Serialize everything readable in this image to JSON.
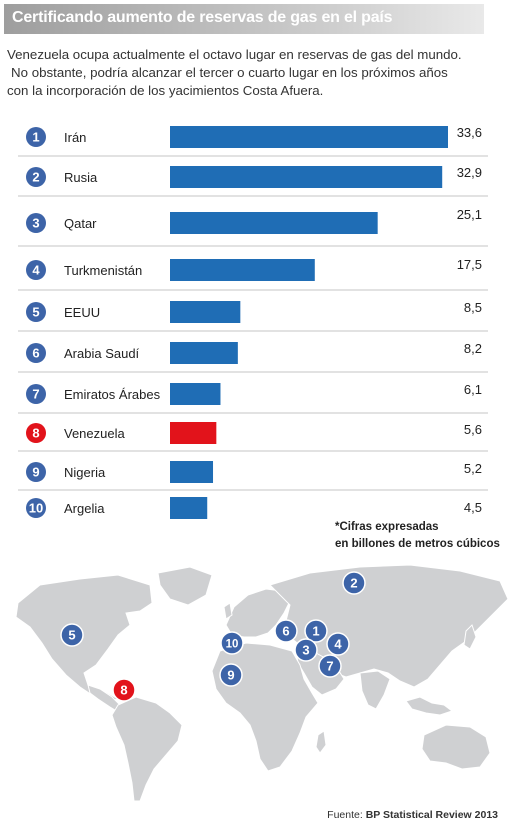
{
  "header": {
    "title": "Certificando aumento de reservas de gas en el país"
  },
  "intro": {
    "line1": "Venezuela ocupa actualmente el octavo lugar en reservas de gas del mundo.",
    "line2": "No obstante, podría alcanzar el tercer o cuarto lugar en los próximos años",
    "line3": "con la incorporación de los yacimientos Costa Afuera."
  },
  "note": {
    "line1": "*Cifras expresadas",
    "line2": "en billones de metros cúbicos"
  },
  "source": {
    "prefix": "Fuente: ",
    "name": "BP Statistical Review 2013"
  },
  "colors": {
    "bar": "#1f6db5",
    "highlight": "#e2131b",
    "badge": "#3d64a8",
    "map_land": "#cfd0d2",
    "row_border": "#c6c6c6"
  },
  "chart_data": {
    "type": "bar",
    "orientation": "horizontal",
    "ranks": [
      "1",
      "2",
      "3",
      "4",
      "5",
      "6",
      "7",
      "8",
      "9",
      "10"
    ],
    "categories": [
      "Irán",
      "Rusia",
      "Qatar",
      "Turkmenistán",
      "EEUU",
      "Arabia Saudí",
      "Emiratos Árabes",
      "Venezuela",
      "Nigeria",
      "Argelia"
    ],
    "values": [
      33.6,
      32.9,
      25.1,
      17.5,
      8.5,
      8.2,
      6.1,
      5.6,
      5.2,
      4.5
    ],
    "value_labels": [
      "33,6",
      "32,9",
      "25,1",
      "17,5",
      "8,5",
      "8,2",
      "6,1",
      "5,6",
      "5,2",
      "4,5"
    ],
    "highlight_category": "Venezuela",
    "xlim": [
      0,
      33.6
    ]
  },
  "map": {
    "markers": [
      "2",
      "5",
      "10",
      "6",
      "1",
      "3",
      "4",
      "7",
      "9",
      "8"
    ]
  }
}
